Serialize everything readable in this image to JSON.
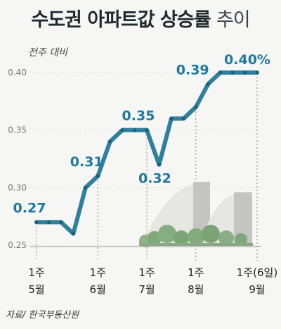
{
  "title_main": "수도권 아파트값 상승률",
  "title_sub": "추이",
  "source": "자료/ 한국부동산원",
  "colors": {
    "line": "#2f7f9e",
    "marker": "#1d5f7a",
    "label": "#1c7aa0",
    "grid": "#c9c9c9"
  },
  "chart_data": {
    "type": "line",
    "title": "수도권 아파트값 상승률 추이",
    "ylabel": "전주 대비",
    "ylim": [
      0.25,
      0.4
    ],
    "yticks": [
      "0.25",
      "0.30",
      "0.35",
      "0.40"
    ],
    "grid": "horizontal dotted",
    "x_labels": [
      {
        "index": 0,
        "line1": "1주",
        "line2": "5월"
      },
      {
        "index": 5,
        "line1": "1주",
        "line2": "6월"
      },
      {
        "index": 9,
        "line1": "1주",
        "line2": "7월"
      },
      {
        "index": 13,
        "line1": "1주",
        "line2": "8월"
      },
      {
        "index": 18,
        "line1": "1주(6일)",
        "line2": "9월"
      }
    ],
    "values": [
      0.27,
      0.27,
      0.27,
      0.26,
      0.3,
      0.31,
      0.34,
      0.35,
      0.35,
      0.35,
      0.32,
      0.36,
      0.36,
      0.37,
      0.39,
      0.4,
      0.4,
      0.4,
      0.4
    ],
    "data_labels": [
      {
        "index": 0,
        "text": "0.27"
      },
      {
        "index": 5,
        "text": "0.31"
      },
      {
        "index": 9,
        "text": "0.35"
      },
      {
        "index": 10,
        "text": "0.32"
      },
      {
        "index": 14,
        "text": "0.39"
      },
      {
        "index": 18,
        "text": "0.40%"
      }
    ]
  }
}
